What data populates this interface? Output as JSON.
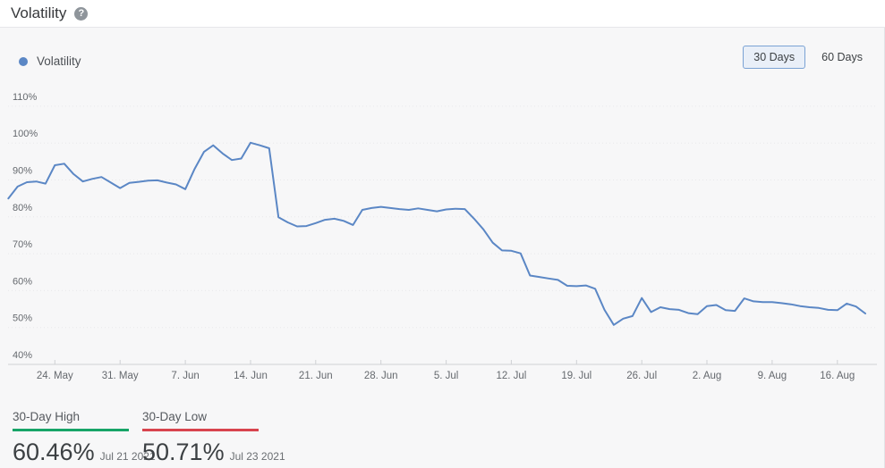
{
  "header": {
    "title": "Volatility"
  },
  "icons": {
    "help": "?"
  },
  "legend": {
    "label": "Volatility"
  },
  "range_toggle": {
    "selected": "30 Days",
    "options": [
      "30 Days",
      "60 Days"
    ]
  },
  "chart_data": {
    "type": "line",
    "title": "Volatility",
    "ylim": [
      40,
      110
    ],
    "ytick_step": 10,
    "yticks": [
      "40%",
      "50%",
      "60%",
      "70%",
      "80%",
      "90%",
      "100%",
      "110%"
    ],
    "grid": "dotted-horizontal",
    "legend_position": "top-left",
    "x_interval": "daily",
    "xticks": [
      {
        "label": "24. May",
        "index": 5
      },
      {
        "label": "31. May",
        "index": 12
      },
      {
        "label": "7. Jun",
        "index": 19
      },
      {
        "label": "14. Jun",
        "index": 26
      },
      {
        "label": "21. Jun",
        "index": 33
      },
      {
        "label": "28. Jun",
        "index": 40
      },
      {
        "label": "5. Jul",
        "index": 47
      },
      {
        "label": "12. Jul",
        "index": 54
      },
      {
        "label": "19. Jul",
        "index": 61
      },
      {
        "label": "26. Jul",
        "index": 68
      },
      {
        "label": "2. Aug",
        "index": 75
      },
      {
        "label": "9. Aug",
        "index": 82
      },
      {
        "label": "16. Aug",
        "index": 89
      }
    ],
    "dates": [
      "2021-05-19",
      "2021-05-20",
      "2021-05-21",
      "2021-05-22",
      "2021-05-23",
      "2021-05-24",
      "2021-05-25",
      "2021-05-26",
      "2021-05-27",
      "2021-05-28",
      "2021-05-29",
      "2021-05-30",
      "2021-05-31",
      "2021-06-01",
      "2021-06-02",
      "2021-06-03",
      "2021-06-04",
      "2021-06-05",
      "2021-06-06",
      "2021-06-07",
      "2021-06-08",
      "2021-06-09",
      "2021-06-10",
      "2021-06-11",
      "2021-06-12",
      "2021-06-13",
      "2021-06-14",
      "2021-06-15",
      "2021-06-16",
      "2021-06-17",
      "2021-06-18",
      "2021-06-19",
      "2021-06-20",
      "2021-06-21",
      "2021-06-22",
      "2021-06-23",
      "2021-06-24",
      "2021-06-25",
      "2021-06-26",
      "2021-06-27",
      "2021-06-28",
      "2021-06-29",
      "2021-06-30",
      "2021-07-01",
      "2021-07-02",
      "2021-07-03",
      "2021-07-04",
      "2021-07-05",
      "2021-07-06",
      "2021-07-07",
      "2021-07-08",
      "2021-07-09",
      "2021-07-10",
      "2021-07-11",
      "2021-07-12",
      "2021-07-13",
      "2021-07-14",
      "2021-07-15",
      "2021-07-16",
      "2021-07-17",
      "2021-07-18",
      "2021-07-19",
      "2021-07-20",
      "2021-07-21",
      "2021-07-22",
      "2021-07-23",
      "2021-07-24",
      "2021-07-25",
      "2021-07-26",
      "2021-07-27",
      "2021-07-28",
      "2021-07-29",
      "2021-07-30",
      "2021-07-31",
      "2021-08-01",
      "2021-08-02",
      "2021-08-03",
      "2021-08-04",
      "2021-08-05",
      "2021-08-06",
      "2021-08-07",
      "2021-08-08",
      "2021-08-09",
      "2021-08-10",
      "2021-08-11",
      "2021-08-12",
      "2021-08-13",
      "2021-08-14",
      "2021-08-15",
      "2021-08-16",
      "2021-08-17",
      "2021-08-18",
      "2021-08-19"
    ],
    "series": [
      {
        "name": "Volatility",
        "color": "#5b87c5",
        "values": [
          85.0,
          88.2,
          89.4,
          89.6,
          89.0,
          94.0,
          94.4,
          91.6,
          89.6,
          90.3,
          90.8,
          89.3,
          87.8,
          89.2,
          89.5,
          89.8,
          89.9,
          89.3,
          88.8,
          87.5,
          93.0,
          97.6,
          99.4,
          97.2,
          95.4,
          95.8,
          100.1,
          99.4,
          98.6,
          79.9,
          78.5,
          77.4,
          77.5,
          78.3,
          79.2,
          79.5,
          78.9,
          77.8,
          81.9,
          82.4,
          82.7,
          82.4,
          82.1,
          81.9,
          82.3,
          81.9,
          81.5,
          82.0,
          82.2,
          82.1,
          79.5,
          76.6,
          73.0,
          70.9,
          70.8,
          70.1,
          64.1,
          63.7,
          63.3,
          62.9,
          61.3,
          61.2,
          61.4,
          60.5,
          54.8,
          50.7,
          52.4,
          53.1,
          58.0,
          54.2,
          55.5,
          55.0,
          54.8,
          53.9,
          53.6,
          55.8,
          56.1,
          54.7,
          54.5,
          57.9,
          57.1,
          56.9,
          56.9,
          56.6,
          56.3,
          55.8,
          55.5,
          55.3,
          54.8,
          54.7,
          56.5,
          55.7,
          53.8
        ]
      }
    ]
  },
  "stats": {
    "high": {
      "label": "30-Day High",
      "value": "60.46%",
      "date": "Jul 21 2021",
      "color": "#17a468"
    },
    "low": {
      "label": "30-Day Low",
      "value": "50.71%",
      "date": "Jul 23 2021",
      "color": "#d8444e"
    }
  }
}
